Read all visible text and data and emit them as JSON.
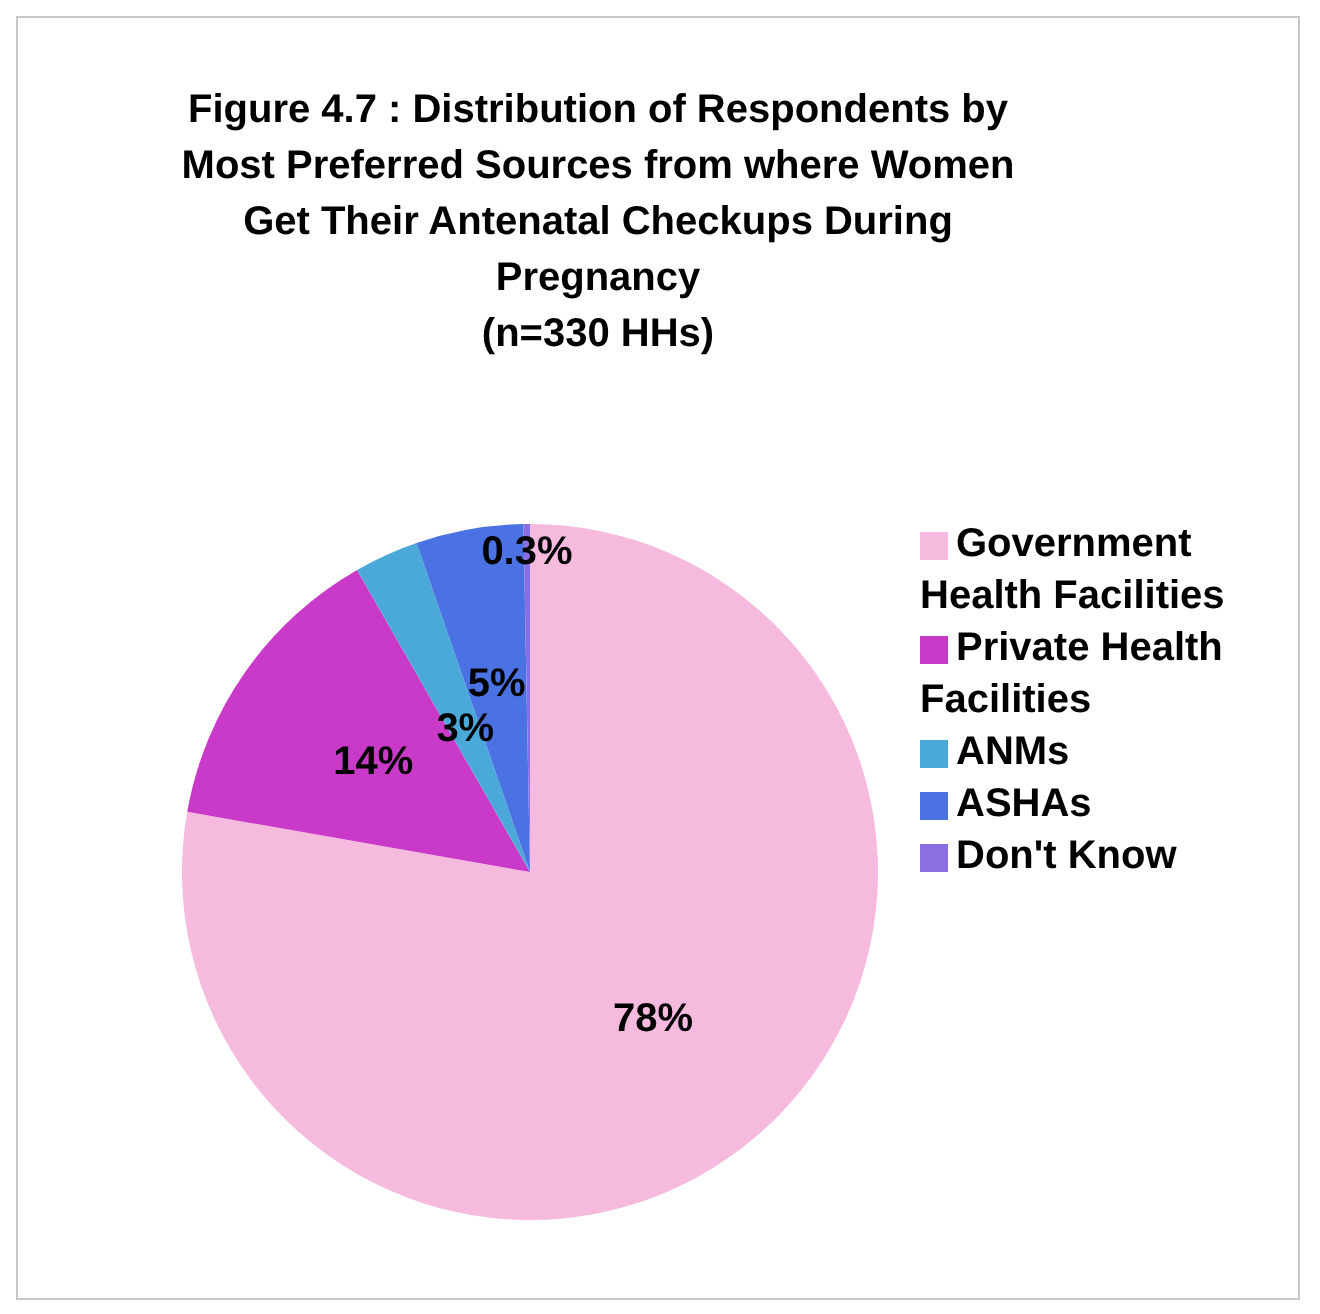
{
  "chart_data": {
    "type": "pie",
    "title": "Figure 4.7 : Distribution of Respondents by Most Preferred Sources from where Women Get Their Antenatal Checkups During Pregnancy\n(n=330 HHs)",
    "categories": [
      "Government Health Facilities",
      "Private Health Facilities",
      "ANMs",
      "ASHAs",
      "Don't Know"
    ],
    "values": [
      78,
      14,
      3,
      5,
      0.3
    ],
    "colors": [
      "#f5bade",
      "#c93ac9",
      "#4ba9da",
      "#4a72e2",
      "#8b6fe0"
    ],
    "value_labels": [
      "78%",
      "14%",
      "3%",
      "5%",
      "0.3%"
    ],
    "legend": "right"
  }
}
